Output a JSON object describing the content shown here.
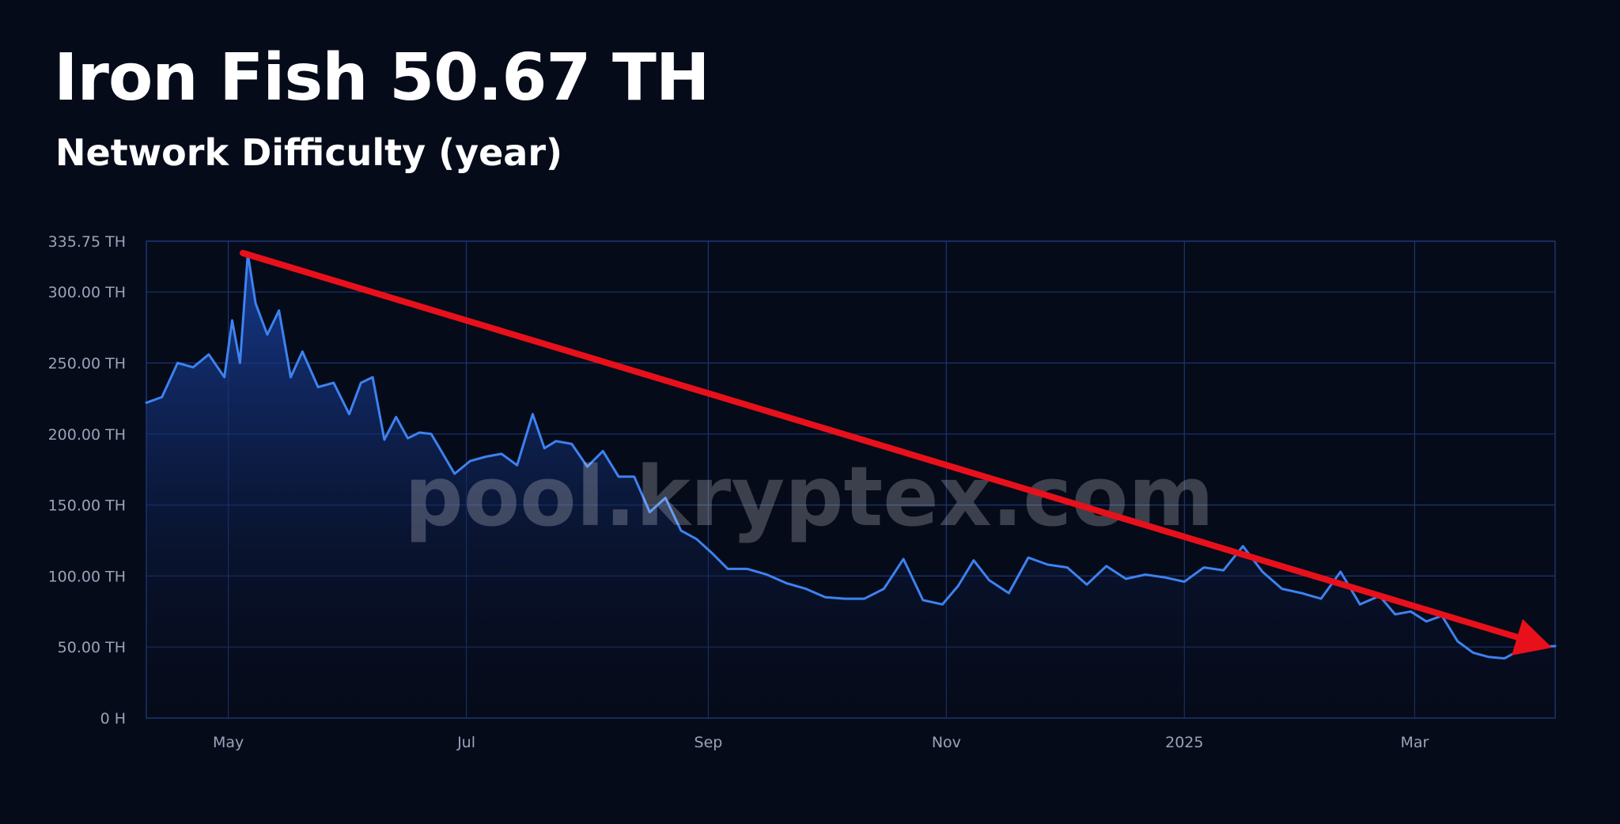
{
  "header": {
    "title": "Iron Fish 50.67 TH",
    "subtitle": "Network Difficulty (year)"
  },
  "watermark": "pool.kryptex.com",
  "colors": {
    "background": "#060b1a",
    "line": "#3d82f0",
    "fill_top": "#1a44a8",
    "grid": "#1c3470",
    "arrow": "#e8101a"
  },
  "chart_data": {
    "type": "area",
    "x_tick_labels": [
      "May",
      "Jul",
      "Sep",
      "Nov",
      "2025",
      "Mar"
    ],
    "x_tick_dates": [
      "2024-05-01",
      "2024-07-01",
      "2024-09-01",
      "2024-11-01",
      "2025-01-01",
      "2025-03-01"
    ],
    "y_tick_labels": [
      "0 H",
      "50.00 TH",
      "100.00 TH",
      "150.00 TH",
      "200.00 TH",
      "250.00 TH",
      "300.00 TH",
      "335.75 TH"
    ],
    "y_tick_values": [
      0,
      50,
      100,
      150,
      200,
      250,
      300,
      335.75
    ],
    "ylim": [
      0,
      335.75
    ],
    "xlim": [
      "2024-04-10",
      "2025-04-06"
    ],
    "grid": true,
    "series": [
      {
        "x": [
          "2024-04-10",
          "2024-04-14",
          "2024-04-18",
          "2024-04-22",
          "2024-04-26",
          "2024-04-30",
          "2024-05-02",
          "2024-05-04",
          "2024-05-06",
          "2024-05-08",
          "2024-05-11",
          "2024-05-14",
          "2024-05-17",
          "2024-05-20",
          "2024-05-24",
          "2024-05-28",
          "2024-06-01",
          "2024-06-04",
          "2024-06-07",
          "2024-06-10",
          "2024-06-13",
          "2024-06-16",
          "2024-06-19",
          "2024-06-22",
          "2024-06-25",
          "2024-06-28",
          "2024-07-02",
          "2024-07-06",
          "2024-07-10",
          "2024-07-14",
          "2024-07-18",
          "2024-07-21",
          "2024-07-24",
          "2024-07-28",
          "2024-08-01",
          "2024-08-05",
          "2024-08-09",
          "2024-08-13",
          "2024-08-17",
          "2024-08-21",
          "2024-08-25",
          "2024-08-29",
          "2024-09-02",
          "2024-09-06",
          "2024-09-11",
          "2024-09-16",
          "2024-09-21",
          "2024-09-26",
          "2024-10-01",
          "2024-10-06",
          "2024-10-11",
          "2024-10-16",
          "2024-10-21",
          "2024-10-26",
          "2024-10-31",
          "2024-11-04",
          "2024-11-08",
          "2024-11-12",
          "2024-11-17",
          "2024-11-22",
          "2024-11-27",
          "2024-12-02",
          "2024-12-07",
          "2024-12-12",
          "2024-12-17",
          "2024-12-22",
          "2024-12-27",
          "2025-01-01",
          "2025-01-06",
          "2025-01-11",
          "2025-01-16",
          "2025-01-21",
          "2025-01-26",
          "2025-01-31",
          "2025-02-05",
          "2025-02-10",
          "2025-02-15",
          "2025-02-20",
          "2025-02-24",
          "2025-02-28",
          "2025-03-04",
          "2025-03-08",
          "2025-03-12",
          "2025-03-16",
          "2025-03-20",
          "2025-03-24",
          "2025-03-28",
          "2025-04-01",
          "2025-04-06"
        ],
        "values": [
          222,
          226,
          250,
          247,
          256,
          240,
          280,
          250,
          327,
          292,
          270,
          287,
          240,
          258,
          233,
          236,
          214,
          236,
          240,
          196,
          212,
          197,
          201,
          200,
          186,
          172,
          181,
          184,
          186,
          178,
          214,
          190,
          195,
          193,
          177,
          188,
          170,
          170,
          145,
          155,
          132,
          126,
          116,
          105,
          105,
          101,
          95,
          91,
          85,
          84,
          84,
          91,
          112,
          83,
          80,
          93,
          111,
          97,
          88,
          113,
          108,
          106,
          94,
          107,
          98,
          101,
          99,
          96,
          106,
          104,
          121,
          103,
          91,
          88,
          84,
          103,
          80,
          86,
          73,
          75,
          68,
          72,
          54,
          46,
          43,
          42,
          48,
          50,
          50.67
        ]
      }
    ]
  }
}
